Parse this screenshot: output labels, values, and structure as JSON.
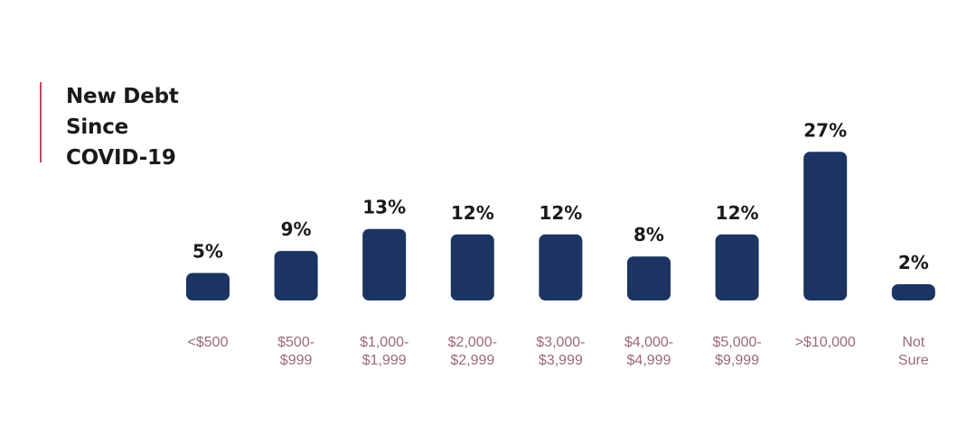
{
  "title_lines": [
    "New Debt",
    "Since",
    "COVID-19"
  ],
  "colors": {
    "bar": "#1c3461",
    "accent": "#c0485a",
    "tick_label": "#9a6a78",
    "value_label": "#1a1a1a"
  },
  "chart_data": {
    "type": "bar",
    "title": "New Debt Since COVID-19",
    "xlabel": "",
    "ylabel": "",
    "ylim": [
      0,
      27
    ],
    "categories": [
      [
        "<$500"
      ],
      [
        "$500-",
        "$999"
      ],
      [
        "$1,000-",
        "$1,999"
      ],
      [
        "$2,000-",
        "$2,999"
      ],
      [
        "$3,000-",
        "$3,999"
      ],
      [
        "$4,000-",
        "$4,999"
      ],
      [
        "$5,000-",
        "$9,999"
      ],
      [
        ">$10,000"
      ],
      [
        "Not",
        "Sure"
      ]
    ],
    "values": [
      5,
      9,
      13,
      12,
      12,
      8,
      12,
      27,
      2
    ],
    "value_labels": [
      "5%",
      "9%",
      "13%",
      "12%",
      "12%",
      "8%",
      "12%",
      "27%",
      "2%"
    ],
    "grid": false,
    "legend": "none"
  }
}
